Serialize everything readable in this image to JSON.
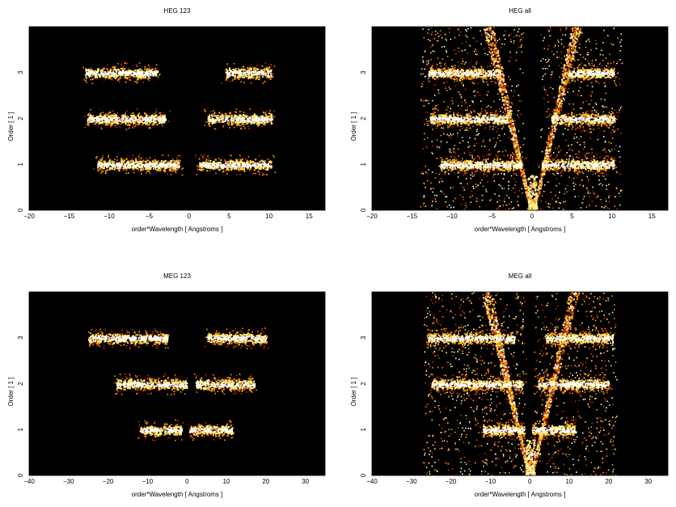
{
  "chart_data": [
    {
      "type": "heatmap",
      "title": "HEG 123",
      "xlabel": "order*Wavelength [ Angstroms ]",
      "ylabel": "Order [ 1 ]",
      "xlim": [
        -20,
        17
      ],
      "ylim": [
        0,
        4
      ],
      "xticks": [
        -20,
        -15,
        -10,
        -5,
        0,
        5,
        10,
        15
      ],
      "yticks": [
        0,
        1,
        2,
        3
      ],
      "colormap": [
        "#000000",
        "#5a0000",
        "#c83200",
        "#ff9a00",
        "#ffee80",
        "#ffffff"
      ],
      "bands": [
        {
          "order": 1,
          "segments": [
            [
              -11.5,
              -1.3
            ],
            [
              1.2,
              10.2
            ]
          ]
        },
        {
          "order": 2,
          "segments": [
            [
              -12.8,
              -3.0
            ],
            [
              2.3,
              10.3
            ]
          ]
        },
        {
          "order": 3,
          "segments": [
            [
              -13.0,
              -4.0
            ],
            [
              4.5,
              10.2
            ]
          ]
        }
      ],
      "fan": false
    },
    {
      "type": "heatmap",
      "title": "HEG all",
      "xlabel": "order*Wavelength [ Angstroms ]",
      "ylabel": "Order [ 1 ]",
      "xlim": [
        -20,
        17
      ],
      "ylim": [
        0,
        4
      ],
      "xticks": [
        -20,
        -15,
        -10,
        -5,
        0,
        5,
        10,
        15
      ],
      "yticks": [
        0,
        1,
        2,
        3
      ],
      "colormap": [
        "#000000",
        "#5a0000",
        "#c83200",
        "#ff9a00",
        "#ffee80",
        "#ffffff"
      ],
      "bands": [
        {
          "order": 1,
          "segments": [
            [
              -11.5,
              -1.3
            ],
            [
              1.2,
              10.2
            ]
          ]
        },
        {
          "order": 2,
          "segments": [
            [
              -12.8,
              -3.0
            ],
            [
              2.3,
              10.3
            ]
          ]
        },
        {
          "order": 3,
          "segments": [
            [
              -13.0,
              -4.0
            ],
            [
              4.5,
              10.2
            ]
          ]
        }
      ],
      "fan": true
    },
    {
      "type": "heatmap",
      "title": "MEG 123",
      "xlabel": "order*Wavelength [ Angstroms ]",
      "ylabel": "Order [ 1 ]",
      "xlim": [
        -40,
        35
      ],
      "ylim": [
        0,
        4
      ],
      "xticks": [
        -40,
        -30,
        -20,
        -10,
        0,
        10,
        20,
        30
      ],
      "yticks": [
        0,
        1,
        2,
        3
      ],
      "colormap": [
        "#000000",
        "#5a0000",
        "#c83200",
        "#ff9a00",
        "#ffee80",
        "#ffffff"
      ],
      "bands": [
        {
          "order": 1,
          "segments": [
            [
              -12.0,
              -1.5
            ],
            [
              0.5,
              11.5
            ]
          ]
        },
        {
          "order": 2,
          "segments": [
            [
              -18.0,
              0.0
            ],
            [
              2.0,
              17.0
            ]
          ]
        },
        {
          "order": 3,
          "segments": [
            [
              -25.0,
              -5.0
            ],
            [
              5.0,
              20.0
            ]
          ]
        }
      ],
      "fan": false
    },
    {
      "type": "heatmap",
      "title": "MEG all",
      "xlabel": "order*Wavelength [ Angstroms ]",
      "ylabel": "Order [ 1 ]",
      "xlim": [
        -40,
        35
      ],
      "ylim": [
        0,
        4
      ],
      "xticks": [
        -40,
        -30,
        -20,
        -10,
        0,
        10,
        20,
        30
      ],
      "yticks": [
        0,
        1,
        2,
        3
      ],
      "colormap": [
        "#000000",
        "#5a0000",
        "#c83200",
        "#ff9a00",
        "#ffee80",
        "#ffffff"
      ],
      "bands": [
        {
          "order": 1,
          "segments": [
            [
              -12.0,
              -1.5
            ],
            [
              0.5,
              11.5
            ]
          ]
        },
        {
          "order": 2,
          "segments": [
            [
              -25.0,
              -2.0
            ],
            [
              2.0,
              20.0
            ]
          ]
        },
        {
          "order": 3,
          "segments": [
            [
              -26.0,
              -4.0
            ],
            [
              4.0,
              21.0
            ]
          ]
        }
      ],
      "fan": true
    }
  ]
}
